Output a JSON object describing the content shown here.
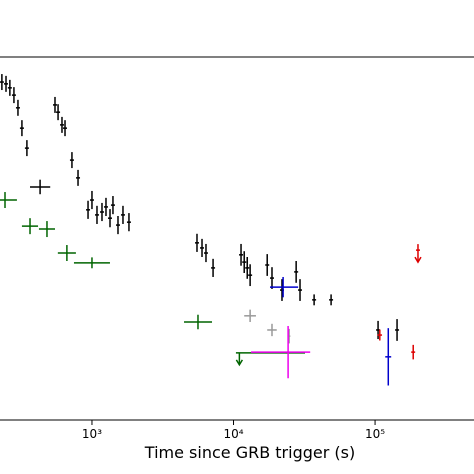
{
  "chart_data": {
    "type": "scatter",
    "x_label": "Time since GRB trigger (s)",
    "x_scale": "log",
    "xlim": [
      224,
      500000
    ],
    "ylim": [
      0,
      100
    ],
    "xticks": [
      {
        "value": 1000,
        "label": "10³"
      },
      {
        "value": 10000,
        "label": "10⁴"
      },
      {
        "value": 100000,
        "label": "10⁵"
      }
    ],
    "series": [
      {
        "color": "#000000",
        "x": [
          231,
          247,
          263,
          281,
          300,
          320,
          347,
          548,
          576,
          614,
          645,
          722,
          797,
          938,
          1000,
          1085,
          1177,
          1256,
          1341,
          1407,
          1527,
          1656,
          1825,
          5520,
          5990,
          6390,
          7170,
          11300,
          11900,
          12500,
          13100,
          17300,
          18700,
          22000,
          27700,
          29500,
          37100,
          48900,
          105000,
          143000
        ],
        "values": [
          93.1,
          92.6,
          91.5,
          89.5,
          86.0,
          80.4,
          74.9,
          86.8,
          84.8,
          81.3,
          80.4,
          71.6,
          66.7,
          57.9,
          60.6,
          56.5,
          57.3,
          58.7,
          55.6,
          59.2,
          53.7,
          56.5,
          54.5,
          48.8,
          47.4,
          46.0,
          41.9,
          45.5,
          43.5,
          41.9,
          39.9,
          42.7,
          39.1,
          35.8,
          40.8,
          35.8,
          33.1,
          33.1,
          24.8,
          24.8
        ],
        "yerr": [
          2.2,
          2.2,
          2.2,
          2.2,
          2.2,
          2.2,
          2.2,
          2.2,
          2.2,
          2.2,
          2.2,
          2.2,
          2.2,
          2.5,
          2.5,
          2.5,
          2.5,
          2.5,
          2.5,
          2.5,
          2.5,
          2.5,
          2.5,
          2.5,
          2.5,
          2.5,
          2.5,
          3,
          3,
          3,
          3,
          3,
          3,
          3,
          3,
          3,
          1.5,
          1.5,
          2.5,
          3
        ]
      },
      {
        "color": "#000000",
        "x": [
          430
        ],
        "values": [
          64.2
        ],
        "yerr": [
          2
        ],
        "xlow": [
          365
        ],
        "xhigh": [
          507
        ]
      },
      {
        "color": "#006400",
        "x": [
          243,
          365,
          481,
          665,
          1000,
          5610
        ],
        "values": [
          60.6,
          53.4,
          52.6,
          46.0,
          43.3,
          27.0
        ],
        "yerr": [
          2.2,
          2.2,
          2.2,
          2.2,
          1.5,
          2
        ],
        "xlow": [
          200,
          320,
          422,
          574,
          746,
          4470
        ],
        "xhigh": [
          295,
          416,
          548,
          770,
          1340,
          7050
        ]
      },
      {
        "color": "#006400",
        "x": [
          11000
        ],
        "values": [
          18.5
        ],
        "xlow": [
          10400
        ],
        "xhigh": [
          32000
        ],
        "upper_limit": true
      },
      {
        "color": "#999999",
        "x": [
          13100,
          18700,
          24700
        ],
        "values": [
          28.7,
          24.8,
          23.1
        ],
        "yerr": [
          1.7,
          1.7,
          2
        ],
        "xlow": [
          11900,
          17300,
          24200
        ],
        "xhigh": [
          14400,
          20200,
          25200
        ]
      },
      {
        "color": "#0000cc",
        "x": [
          22400,
          124000
        ],
        "values": [
          36.6,
          17.4
        ],
        "yerr": [
          2.8,
          7.9
        ],
        "xlow": [
          18100,
          118000
        ],
        "xhigh": [
          28600,
          130000
        ]
      },
      {
        "color": "#ee00ee",
        "x": [
          24300
        ],
        "values": [
          18.7
        ],
        "yerr": [
          7.2
        ],
        "xlow": [
          13300
        ],
        "xhigh": [
          34800
        ]
      },
      {
        "color": "#dd0000",
        "x": [
          108000,
          186000
        ],
        "values": [
          23.4,
          18.7
        ],
        "yerr": [
          1.5,
          2
        ],
        "xlow": [
          104000,
          180000
        ],
        "xhigh": [
          112000,
          192000
        ]
      },
      {
        "color": "#dd0000",
        "x": [
          201000
        ],
        "values": [
          46.8
        ],
        "upper_limit": true
      }
    ]
  }
}
